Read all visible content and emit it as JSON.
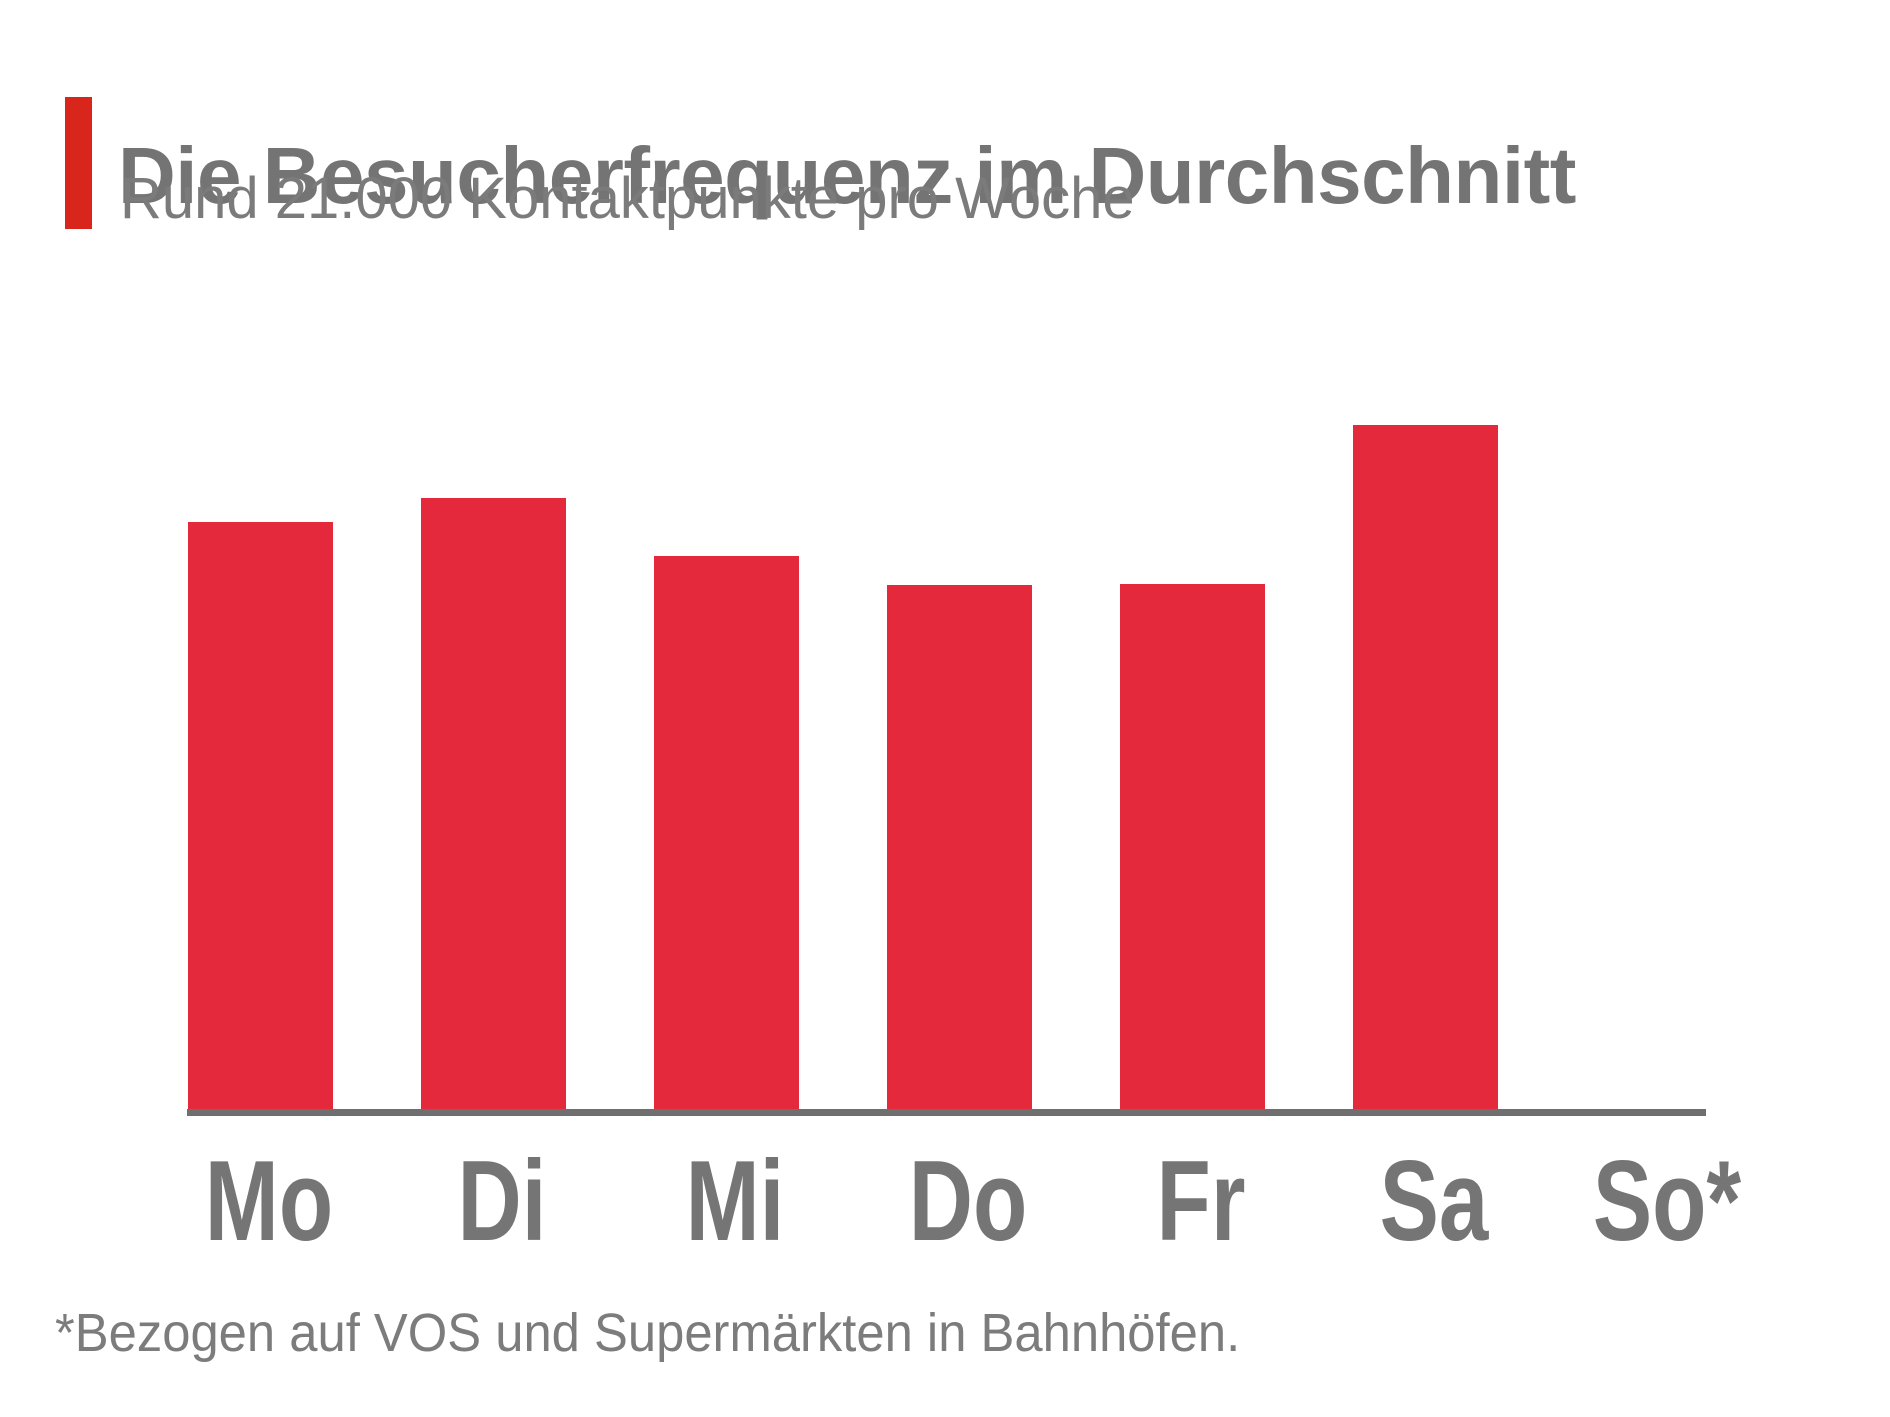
{
  "header": {
    "title": "Die Besucherfrequenz im Durchschnitt",
    "subtitle": "Rund 21.000 Kontaktpunkte pro Woche"
  },
  "footnote": "*Bezogen auf VOS und Supermärkten in Bahnhöfen.",
  "chart_data": {
    "type": "bar",
    "title": "Die Besucherfrequenz im Durchschnitt",
    "subtitle": "Rund 21.000 Kontaktpunkte pro Woche",
    "categories": [
      "Mo",
      "Di",
      "Mi",
      "Do",
      "Fr",
      "Sa",
      "So*"
    ],
    "values": [
      85.8,
      89.3,
      80.8,
      76.6,
      76.8,
      100,
      0
    ],
    "values_note": "relative bar heights in % of tallest bar (Sa); chart shows no numeric y-axis",
    "xlabel": "",
    "ylabel": "",
    "ylim": [
      0,
      100
    ],
    "grid": false,
    "legend": false,
    "bar_color": "#e5293c",
    "axis_color": "#6f6f6f",
    "annotation": "*Bezogen auf VOS und Supermärkten in Bahnhöfen."
  },
  "colors": {
    "accent_bar": "#d9261c",
    "bar_red": "#e5293c",
    "title_gray": "#747474",
    "subtitle_gray": "#7b7b7b",
    "label_gray": "#757575",
    "axis_gray": "#6f6f6f",
    "footnote_gray": "#7c7c7c",
    "background": "#ffffff"
  }
}
